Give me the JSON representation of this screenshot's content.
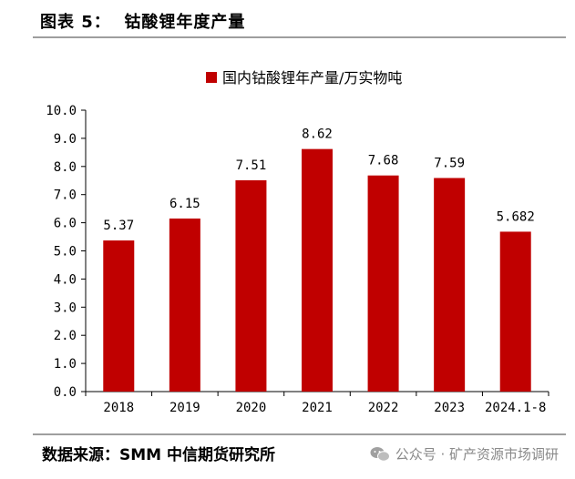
{
  "figure": {
    "title": "图表 5：  钴酸锂年度产量",
    "source": "数据来源：SMM 中信期货研究所",
    "watermark": "公众号 · 矿产资源市场调研"
  },
  "chart_data": {
    "type": "bar",
    "categories": [
      "2018",
      "2019",
      "2020",
      "2021",
      "2022",
      "2023",
      "2024.1-8"
    ],
    "series": [
      {
        "name": "国内钴酸锂年产量/万实物吨",
        "values": [
          5.37,
          6.15,
          7.51,
          8.62,
          7.68,
          7.59,
          5.682
        ],
        "labels": [
          "5.37",
          "6.15",
          "7.51",
          "8.62",
          "7.68",
          "7.59",
          "5.682"
        ],
        "color": "#c00000"
      }
    ],
    "ylim": [
      0,
      10
    ],
    "yticks": [
      "0.0",
      "1.0",
      "2.0",
      "3.0",
      "4.0",
      "5.0",
      "6.0",
      "7.0",
      "8.0",
      "9.0",
      "10.0"
    ],
    "legend_position": "top-center",
    "grid": false
  }
}
